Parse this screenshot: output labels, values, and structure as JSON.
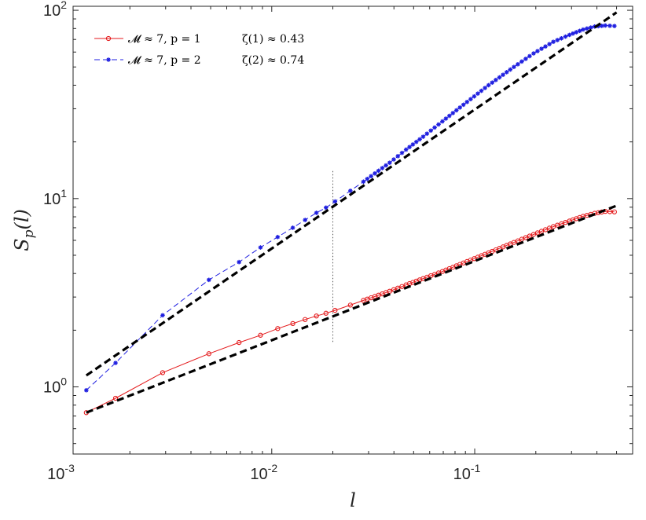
{
  "chart_data": {
    "type": "line",
    "x_scale": "log",
    "y_scale": "log",
    "xlabel": "l",
    "ylabel": "S_p(l)",
    "xlim": [
      0.00105,
      0.6
    ],
    "ylim": [
      0.44,
      105
    ],
    "x_ticks": [
      {
        "value": 0.001,
        "base": "10",
        "exp": "-3"
      },
      {
        "value": 0.01,
        "base": "10",
        "exp": "-2"
      },
      {
        "value": 0.1,
        "base": "10",
        "exp": "-1"
      }
    ],
    "y_ticks": [
      {
        "value": 1,
        "base": "10",
        "exp": "0"
      },
      {
        "value": 10,
        "base": "10",
        "exp": "1"
      },
      {
        "value": 100,
        "base": "10",
        "exp": "2"
      }
    ],
    "grid": false,
    "legend_position": "top-left",
    "vline": {
      "x": 0.02,
      "y_range": [
        1.7,
        14
      ],
      "style": "dotted"
    },
    "series": [
      {
        "name": "𝓜 ≈ 7, p = 1",
        "annotation": "ζ(1) ≈ 0.43",
        "color": "#e41a1c",
        "marker": "circle",
        "x": [
          0.00122,
          0.0017,
          0.0029,
          0.0049,
          0.0069,
          0.0088,
          0.0107,
          0.0127,
          0.0146,
          0.0166,
          0.0185,
          0.0205,
          0.0244,
          0.0283,
          0.0322,
          0.0381,
          0.0459,
          0.0557,
          0.0693,
          0.088,
          0.117,
          0.156,
          0.195,
          0.244,
          0.293,
          0.342,
          0.39,
          0.44,
          0.488
        ],
        "values": [
          0.73,
          0.87,
          1.19,
          1.5,
          1.72,
          1.88,
          2.04,
          2.17,
          2.28,
          2.38,
          2.46,
          2.55,
          2.72,
          2.88,
          3.02,
          3.22,
          3.48,
          3.76,
          4.1,
          4.55,
          5.15,
          5.85,
          6.45,
          7.1,
          7.6,
          8.05,
          8.35,
          8.55,
          8.5
        ]
      },
      {
        "name": "𝓜 ≈ 7, p = 2",
        "annotation": "ζ(2) ≈ 0.74",
        "color": "#1f1fe0",
        "marker": "star",
        "x": [
          0.00122,
          0.0017,
          0.0029,
          0.0049,
          0.0069,
          0.0088,
          0.0107,
          0.0127,
          0.0146,
          0.0166,
          0.0185,
          0.0205,
          0.0244,
          0.0283,
          0.0322,
          0.0381,
          0.0459,
          0.0557,
          0.0693,
          0.088,
          0.117,
          0.156,
          0.195,
          0.244,
          0.293,
          0.342,
          0.39,
          0.44,
          0.488
        ],
        "values": [
          0.96,
          1.34,
          2.4,
          3.7,
          4.6,
          5.5,
          6.25,
          7.0,
          7.7,
          8.4,
          8.95,
          9.65,
          11.0,
          12.3,
          13.6,
          15.5,
          18.2,
          21.3,
          25.7,
          31.5,
          40.0,
          50.0,
          59.0,
          68.0,
          74.0,
          79.0,
          82.0,
          83.0,
          82.5
        ]
      }
    ],
    "fit_lines": [
      {
        "slope": 0.43,
        "x": [
          0.00122,
          0.5
        ],
        "values": [
          0.73,
          9.17
        ],
        "color": "#000000",
        "style": "dashed"
      },
      {
        "slope": 0.74,
        "x": [
          0.00122,
          0.5
        ],
        "values": [
          1.15,
          97.4
        ],
        "color": "#000000",
        "style": "dashed"
      }
    ]
  }
}
